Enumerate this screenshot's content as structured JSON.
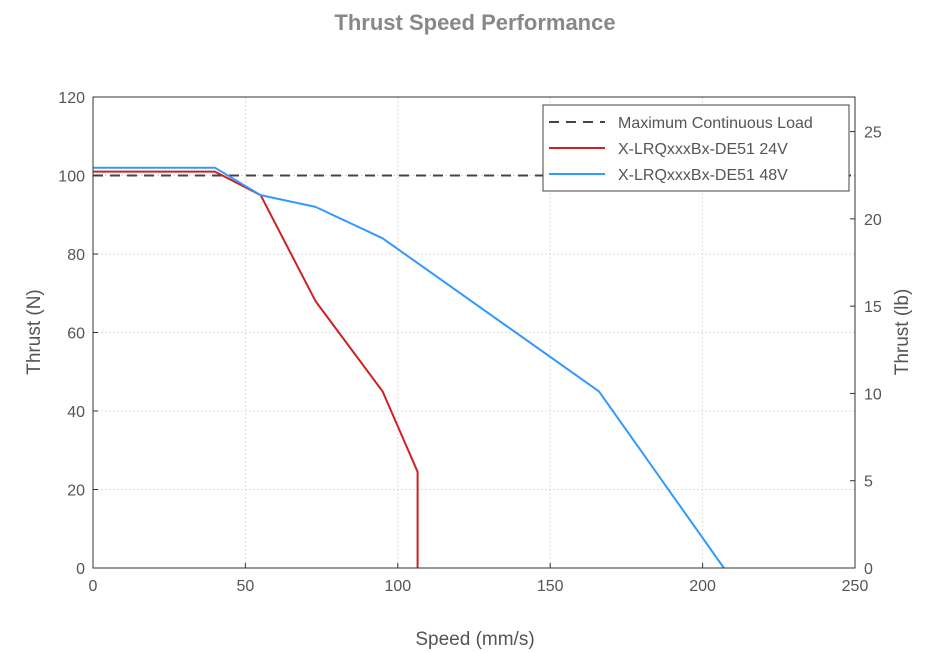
{
  "chart_data": {
    "type": "line",
    "title": "Thrust Speed Performance",
    "xlabel": "Speed (mm/s)",
    "ylabel": "Thrust (N)",
    "y2label": "Thrust (lb)",
    "xlim": [
      0,
      250
    ],
    "ylim": [
      0,
      120
    ],
    "y2lim": [
      0,
      26.98
    ],
    "xticks": [
      0,
      50,
      100,
      150,
      200,
      250
    ],
    "yticks": [
      0,
      20,
      40,
      60,
      80,
      100,
      120
    ],
    "y2ticks": [
      0,
      5,
      10,
      15,
      20,
      25
    ],
    "grid": true,
    "legend_position": "top-right",
    "series": [
      {
        "name": "Maximum Continuous Load",
        "color": "#444444",
        "dash": true,
        "x": [
          0,
          250
        ],
        "y": [
          100,
          100
        ]
      },
      {
        "name": "X-LRQxxxBx-DE51 24V",
        "color": "#cc2222",
        "dash": false,
        "x": [
          0,
          40,
          55,
          73,
          95,
          106.5,
          106.5
        ],
        "y": [
          101,
          101,
          95,
          68,
          45,
          24.5,
          0
        ]
      },
      {
        "name": "X-LRQxxxBx-DE51 48V",
        "color": "#3399ff",
        "dash": false,
        "x": [
          0,
          40,
          55,
          73,
          95,
          166,
          207
        ],
        "y": [
          102,
          102,
          95,
          92,
          84,
          45,
          0
        ]
      }
    ]
  }
}
